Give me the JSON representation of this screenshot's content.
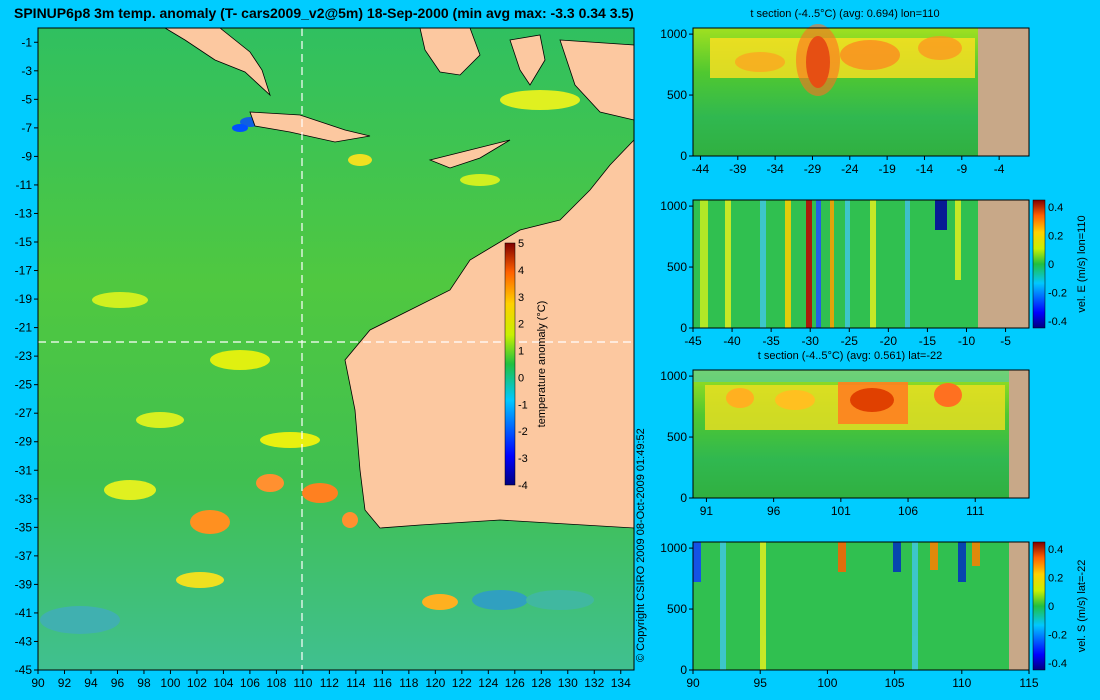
{
  "main_title": "SPINUP6p8 3m temp. anomaly (T- cars2009_v2@5m) 18-Sep-2000 (min avg max: -3.3 0.34 3.5)",
  "copyright": "© Copyright CSIRO 2009   08-Oct-2009 01:49:52",
  "colors": {
    "background": "#00ccff",
    "land": "#fcc8a0",
    "section_land": "#c8a888",
    "crosshair": "#ffffff"
  },
  "chart_data": [
    {
      "type": "heatmap",
      "title": "",
      "x_ticks": [
        "90",
        "92",
        "94",
        "96",
        "98",
        "100",
        "102",
        "104",
        "106",
        "108",
        "110",
        "112",
        "114",
        "116",
        "118",
        "120",
        "122",
        "124",
        "126",
        "128",
        "130",
        "132",
        "134"
      ],
      "y_ticks": [
        "-1",
        "-3",
        "-5",
        "-7",
        "-9",
        "-11",
        "-13",
        "-15",
        "-17",
        "-19",
        "-21",
        "-23",
        "-25",
        "-27",
        "-29",
        "-31",
        "-33",
        "-35",
        "-37",
        "-39",
        "-41",
        "-43",
        "-45"
      ],
      "xlim": [
        90,
        135
      ],
      "ylim": [
        -45,
        0
      ],
      "crosshair": {
        "lon": 110,
        "lat": -22
      },
      "colorbar": {
        "label": "temperature anomaly (°C)",
        "ticks": [
          "5",
          "4",
          "3",
          "2",
          "1",
          "0",
          "-1",
          "-2",
          "-3",
          "-4"
        ],
        "range": [
          -4,
          5
        ]
      }
    },
    {
      "type": "heatmap",
      "title": "t section (-4..5°C) (avg: 0.694) lon=110",
      "x_ticks": [
        "-44",
        "-39",
        "-34",
        "-29",
        "-24",
        "-19",
        "-14",
        "-9",
        "-4"
      ],
      "y_ticks": [
        "0",
        "500",
        "1000"
      ],
      "xlim": [
        -45,
        0
      ],
      "ylim": [
        1050,
        0
      ]
    },
    {
      "type": "heatmap",
      "title": "",
      "x_ticks": [
        "-45",
        "-40",
        "-35",
        "-30",
        "-25",
        "-20",
        "-15",
        "-10",
        "-5"
      ],
      "y_ticks": [
        "0",
        "500",
        "1000"
      ],
      "xlim": [
        -45,
        -2
      ],
      "ylim": [
        1050,
        0
      ],
      "colorbar": {
        "label": "vel. E (m/s) lon=110",
        "ticks": [
          "0.4",
          "0.2",
          "0",
          "-0.2",
          "-0.4"
        ],
        "range": [
          -0.45,
          0.45
        ]
      }
    },
    {
      "type": "heatmap",
      "title": "t section (-4..5°C) (avg: 0.561) lat=-22",
      "x_ticks": [
        "91",
        "96",
        "101",
        "106",
        "111"
      ],
      "y_ticks": [
        "0",
        "500",
        "1000"
      ],
      "xlim": [
        90,
        115
      ],
      "ylim": [
        1050,
        0
      ]
    },
    {
      "type": "heatmap",
      "title": "",
      "x_ticks": [
        "90",
        "95",
        "100",
        "105",
        "110",
        "115"
      ],
      "y_ticks": [
        "0",
        "500",
        "1000"
      ],
      "xlim": [
        90,
        115
      ],
      "ylim": [
        1050,
        0
      ],
      "colorbar": {
        "label": "vel. S (m/s) lat=-22",
        "ticks": [
          "0.4",
          "0.2",
          "0",
          "-0.2",
          "-0.4"
        ],
        "range": [
          -0.45,
          0.45
        ]
      }
    }
  ]
}
